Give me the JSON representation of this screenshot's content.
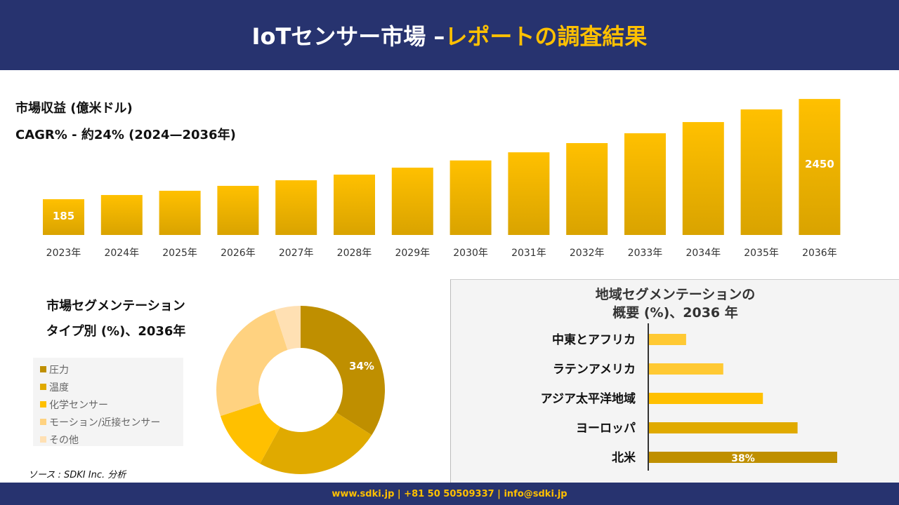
{
  "header": {
    "title_main": "IoTセンサー市場 –",
    "title_accent": "レポートの調査結果"
  },
  "colors": {
    "navy": "#27336f",
    "gold": "#ffc000"
  },
  "chart_data": [
    {
      "type": "bar",
      "title": "市場収益 (億米ドル)",
      "subtitle": "CAGR% - 約24% (2024—2036年)",
      "categories": [
        "2023年",
        "2024年",
        "2025年",
        "2026年",
        "2027年",
        "2028年",
        "2029年",
        "2030年",
        "2031年",
        "2032年",
        "2033年",
        "2034年",
        "2035年",
        "2036年"
      ],
      "values": [
        185,
        280,
        376,
        487,
        613,
        741,
        898,
        1061,
        1245,
        1453,
        1675,
        1928,
        2214,
        2450
      ],
      "data_labels": {
        "0": "185",
        "13": "2450"
      }
    },
    {
      "type": "pie",
      "title_line1": "市場セグメンテーション",
      "title_line2": "タイプ別 (%)、2036年",
      "labels": [
        "圧力",
        "温度",
        "化学センサー",
        "モーション/近接センサー",
        "その他"
      ],
      "values": [
        34,
        24,
        12,
        25,
        5
      ],
      "colors": [
        "#bf8f00",
        "#e0aa00",
        "#ffc000",
        "#ffd280",
        "#ffe0b3"
      ],
      "data_label": "34%"
    },
    {
      "type": "bar",
      "orientation": "horizontal",
      "title_line1": "地域セグメンテーションの",
      "title_line2": "概要 (%)、2036 年",
      "categories": [
        "中東とアフリカ",
        "ラテンアメリカ",
        "アジア太平洋地域",
        "ヨーロッパ",
        "北米"
      ],
      "values": [
        7.5,
        15,
        23,
        30,
        38
      ],
      "colors": [
        "#ffc933",
        "#ffc933",
        "#ffc000",
        "#e0aa00",
        "#bf8f00"
      ],
      "data_label": "38%"
    }
  ],
  "source": "ソース : SDKI Inc. 分析",
  "footer": "www.sdki.jp | +81 50 50509337 | info@sdki.jp"
}
